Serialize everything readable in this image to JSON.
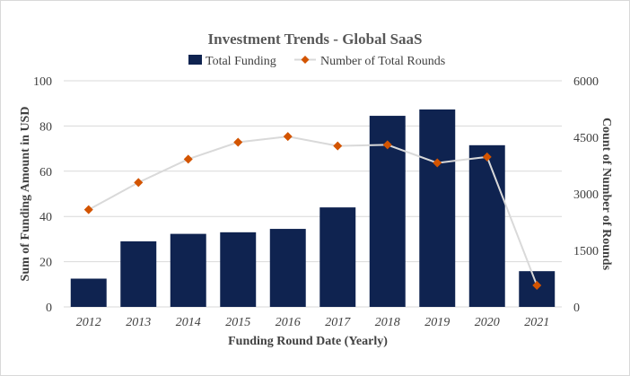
{
  "chart_data": {
    "type": "bar",
    "title": "Investment Trends - Global SaaS",
    "xlabel": "Funding Round Date (Yearly)",
    "ylabel": "Sum of Funding Amount in USD",
    "y2label": "Count of Number of Rounds",
    "categories": [
      "2012",
      "2013",
      "2014",
      "2015",
      "2016",
      "2017",
      "2018",
      "2019",
      "2020",
      "2021"
    ],
    "ylim": [
      0,
      100
    ],
    "y2lim": [
      0,
      6000
    ],
    "yticks": [
      "0",
      "20",
      "40",
      "60",
      "80",
      "100"
    ],
    "y2ticks": [
      "0",
      "1500",
      "3000",
      "4500",
      "6000"
    ],
    "grid": true,
    "legend_position": "top",
    "series": [
      {
        "name": "Total Funding",
        "type": "bar",
        "axis": "left",
        "color": "#0f2350",
        "values": [
          12.5,
          29,
          32.3,
          33,
          34.5,
          44,
          84.5,
          87.3,
          71.5,
          15.8
        ]
      },
      {
        "name": "Number of Total Rounds",
        "type": "line",
        "axis": "right",
        "color": "#d35400",
        "line_color": "#d9d9d9",
        "marker": "diamond",
        "values": [
          2580,
          3300,
          3920,
          4370,
          4520,
          4270,
          4300,
          3820,
          3980,
          570
        ]
      }
    ]
  }
}
